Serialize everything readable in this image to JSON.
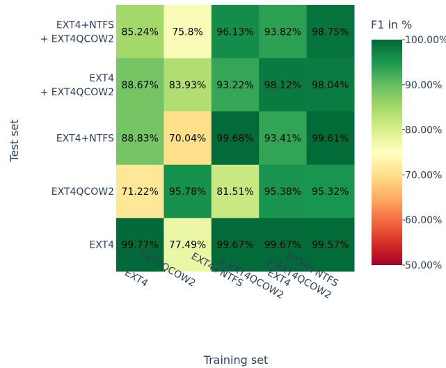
{
  "chart_data": {
    "type": "heatmap",
    "title": "",
    "xlabel": "Training set",
    "ylabel": "Test set",
    "x_categories": [
      [
        "EXT4"
      ],
      [
        "EXT4QCOW2"
      ],
      [
        "EXT4+NTFS"
      ],
      [
        "EXT4",
        "+ EXT4QCOW2"
      ],
      [
        "EXT4+NTFS",
        "+ EXT4QCOW2"
      ]
    ],
    "y_categories": [
      [
        "EXT4+NTFS",
        "+ EXT4QCOW2"
      ],
      [
        "EXT4",
        "+ EXT4QCOW2"
      ],
      [
        "EXT4+NTFS"
      ],
      [
        "EXT4QCOW2"
      ],
      [
        "EXT4"
      ]
    ],
    "values": [
      [
        85.24,
        75.8,
        96.13,
        93.82,
        98.75
      ],
      [
        88.67,
        83.93,
        93.22,
        98.12,
        98.04
      ],
      [
        88.83,
        70.04,
        99.68,
        93.41,
        99.61
      ],
      [
        71.22,
        95.78,
        81.51,
        95.38,
        95.32
      ],
      [
        99.77,
        77.49,
        99.67,
        99.67,
        99.57
      ]
    ],
    "labels": [
      [
        "85.24%",
        "75.8%",
        "96.13%",
        "93.82%",
        "98.75%"
      ],
      [
        "88.67%",
        "83.93%",
        "93.22%",
        "98.12%",
        "98.04%"
      ],
      [
        "88.83%",
        "70.04%",
        "99.68%",
        "93.41%",
        "99.61%"
      ],
      [
        "71.22%",
        "95.78%",
        "81.51%",
        "95.38%",
        "95.32%"
      ],
      [
        "99.77%",
        "77.49%",
        "99.67%",
        "99.67%",
        "99.57%"
      ]
    ],
    "colorbar": {
      "title": "F1 in %",
      "range": [
        50,
        100
      ],
      "ticks": [
        100,
        90,
        80,
        70,
        60,
        50
      ],
      "tick_labels": [
        "100.00%",
        "90.00%",
        "80.00%",
        "70.00%",
        "60.00%",
        "50.00%"
      ],
      "colorscale": "RdYlGn"
    }
  }
}
